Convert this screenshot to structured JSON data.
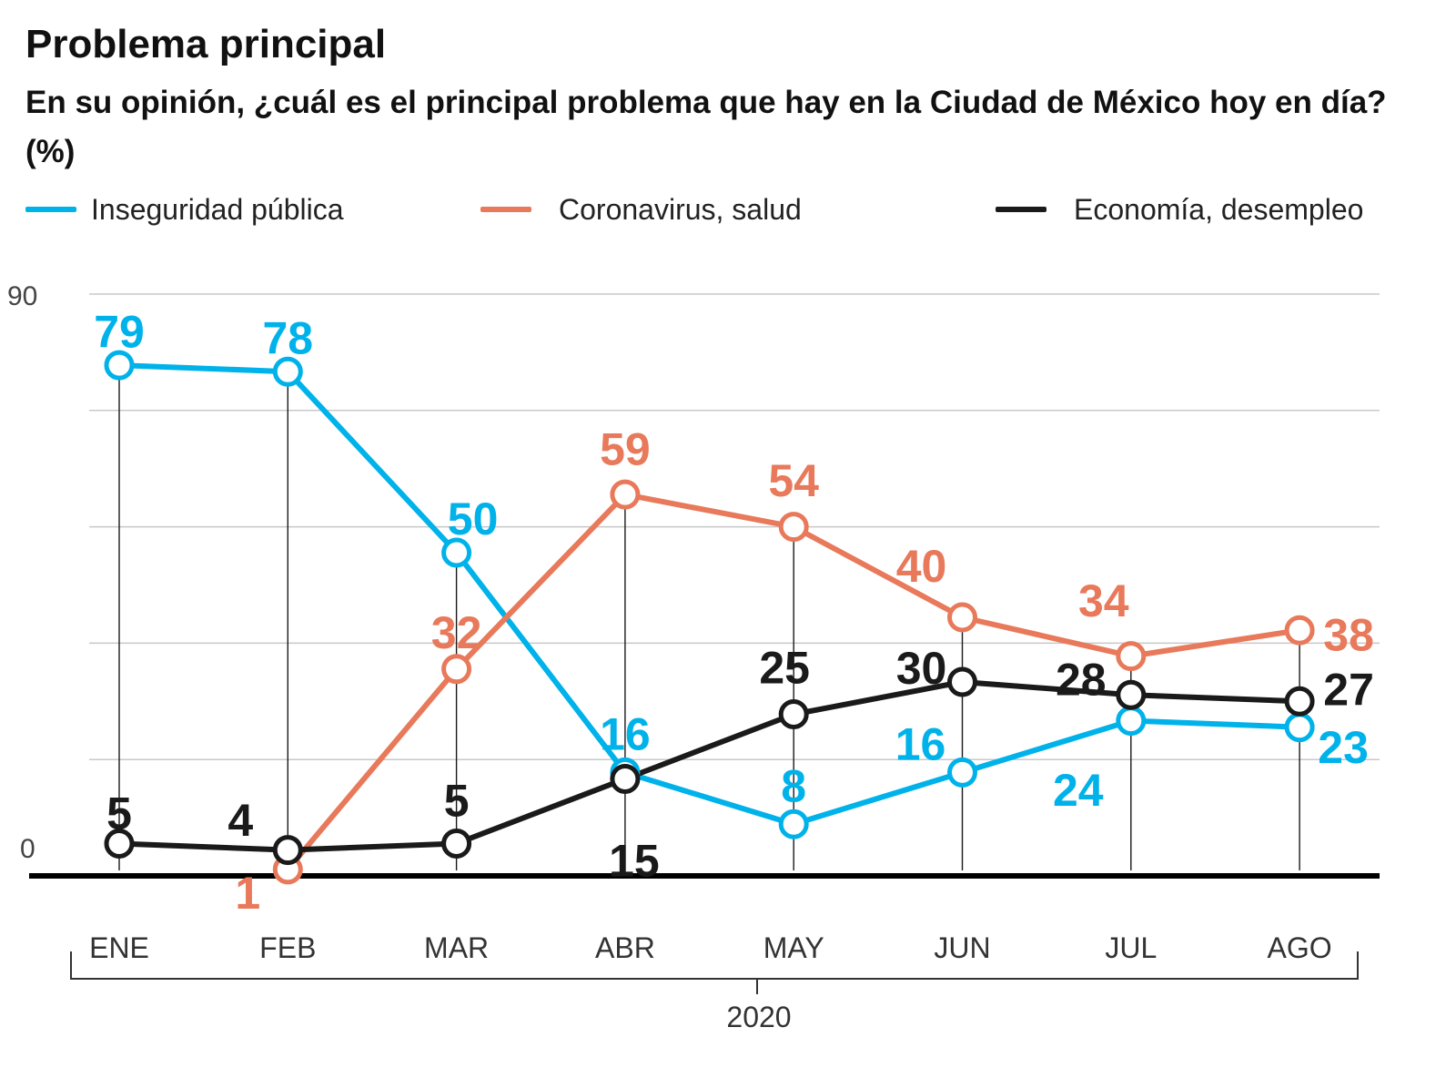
{
  "header": {
    "title": "Problema principal",
    "subtitle": "En su opinión, ¿cuál es el principal problema que hay en la Ciudad de México hoy en día?  (%)"
  },
  "chart_data": {
    "type": "line",
    "title": "Problema principal",
    "subtitle": "En su opinión, ¿cuál es el principal problema que hay en la Ciudad de México hoy en día?  (%)",
    "categories": [
      "ENE",
      "FEB",
      "MAR",
      "ABR",
      "MAY",
      "JUN",
      "JUL",
      "AGO"
    ],
    "group_label": "2020",
    "ylim": [
      0,
      90
    ],
    "ytick_labels": [
      "0",
      "90"
    ],
    "grid": true,
    "legend_position": "top",
    "series": [
      {
        "name": "Inseguridad pública",
        "color": "#00b2ea",
        "values": [
          79,
          78,
          50,
          16,
          8,
          16,
          24,
          23
        ],
        "labels": [
          "79",
          "78",
          "50",
          "16",
          "8",
          "16",
          "24",
          "23"
        ]
      },
      {
        "name": "Coronavirus, salud",
        "color": "#e8795a",
        "values": [
          null,
          1,
          32,
          59,
          54,
          40,
          34,
          38
        ],
        "labels": [
          null,
          "1",
          "32",
          "59",
          "54",
          "40",
          "34",
          "38"
        ]
      },
      {
        "name": "Economía, desempleo",
        "color": "#1a1a1a",
        "values": [
          5,
          4,
          5,
          15,
          25,
          30,
          28,
          27
        ],
        "labels": [
          "5",
          "4",
          "5",
          "15",
          "25",
          "30",
          "28",
          "27"
        ]
      }
    ]
  }
}
